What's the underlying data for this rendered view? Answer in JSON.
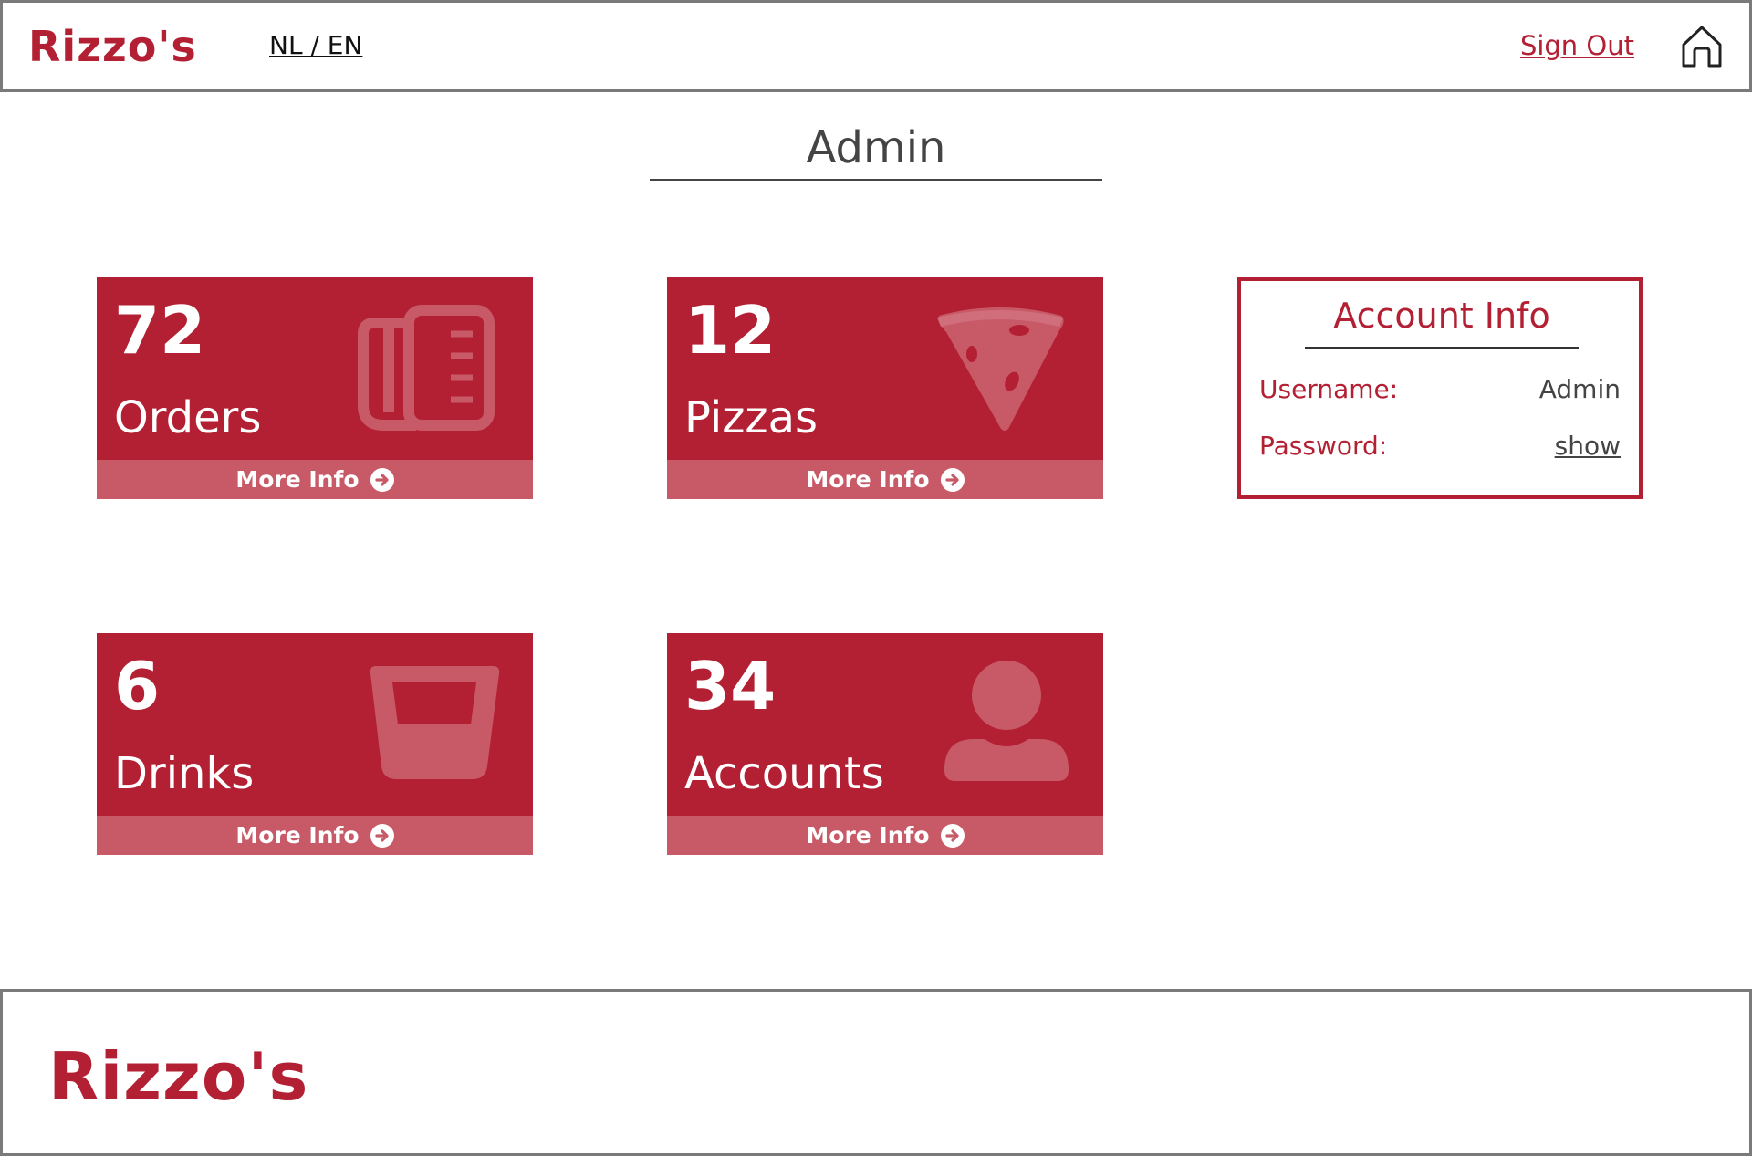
{
  "brand": {
    "logo_text": "Rizzo's",
    "accent": "#b32033",
    "accent_light": "#c85a68"
  },
  "header": {
    "language": "NL / EN",
    "sign_out": "Sign Out",
    "home_icon": "home-icon"
  },
  "page": {
    "title": "Admin"
  },
  "cards": [
    {
      "count": "72",
      "label": "Orders",
      "more": "More Info",
      "icon": "receipt-icon"
    },
    {
      "count": "12",
      "label": "Pizzas",
      "more": "More Info",
      "icon": "pizza-slice-icon"
    },
    {
      "count": "6",
      "label": "Drinks",
      "more": "More Info",
      "icon": "glass-icon"
    },
    {
      "count": "34",
      "label": "Accounts",
      "more": "More Info",
      "icon": "user-icon"
    }
  ],
  "account": {
    "title": "Account Info",
    "username_label": "Username:",
    "username_value": "Admin",
    "password_label": "Password:",
    "password_action": "show"
  }
}
